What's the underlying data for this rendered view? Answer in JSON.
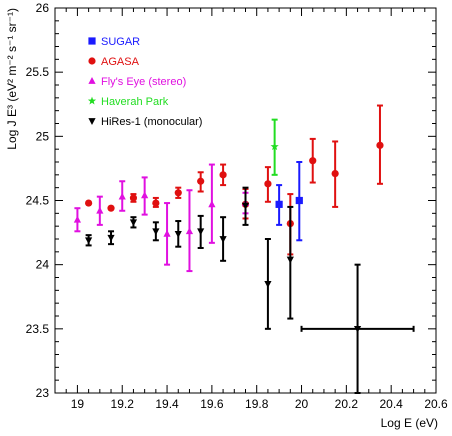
{
  "chart_data": {
    "type": "scatter",
    "title": "",
    "xlabel": "Log E  (eV)",
    "ylabel": "Log J E³ (eV² m⁻² s⁻¹ sr⁻¹)",
    "xlim": [
      18.9,
      20.6
    ],
    "ylim": [
      23,
      26
    ],
    "x_ticks": [
      "19",
      "19.2",
      "19.4",
      "19.6",
      "19.8",
      "20",
      "20.2",
      "20.4",
      "20.6"
    ],
    "y_ticks": [
      "23",
      "23.5",
      "24",
      "24.5",
      "25",
      "25.5",
      "26"
    ],
    "legend_position": "top-left",
    "series": [
      {
        "name": "SUGAR",
        "color": "#1a1aff",
        "marker": "square",
        "points": [
          {
            "x": 19.9,
            "y": 24.47,
            "ylo": 24.31,
            "yhi": 24.62
          },
          {
            "x": 19.99,
            "y": 24.5,
            "ylo": 24.19,
            "yhi": 24.8
          }
        ]
      },
      {
        "name": "AGASA",
        "color": "#e01010",
        "marker": "circle",
        "points": [
          {
            "x": 19.05,
            "y": 24.48
          },
          {
            "x": 19.15,
            "y": 24.44
          },
          {
            "x": 19.25,
            "y": 24.52,
            "ylo": 24.49,
            "yhi": 24.55
          },
          {
            "x": 19.35,
            "y": 24.48,
            "ylo": 24.45,
            "yhi": 24.52
          },
          {
            "x": 19.45,
            "y": 24.56,
            "ylo": 24.52,
            "yhi": 24.6
          },
          {
            "x": 19.55,
            "y": 24.65,
            "ylo": 24.57,
            "yhi": 24.72
          },
          {
            "x": 19.65,
            "y": 24.7,
            "ylo": 24.62,
            "yhi": 24.78
          },
          {
            "x": 19.75,
            "y": 24.47,
            "ylo": 24.36,
            "yhi": 24.59
          },
          {
            "x": 19.85,
            "y": 24.63,
            "ylo": 24.49,
            "yhi": 24.76
          },
          {
            "x": 19.95,
            "y": 24.32,
            "ylo": 24.08,
            "yhi": 24.55
          },
          {
            "x": 20.05,
            "y": 24.81,
            "ylo": 24.64,
            "yhi": 24.98
          },
          {
            "x": 20.15,
            "y": 24.71,
            "ylo": 24.45,
            "yhi": 24.96
          },
          {
            "x": 20.35,
            "y": 24.93,
            "ylo": 24.63,
            "yhi": 25.24
          }
        ]
      },
      {
        "name": "Fly's Eye (stereo)",
        "color": "#e010e0",
        "marker": "triangle-up",
        "points": [
          {
            "x": 19.0,
            "y": 24.35,
            "ylo": 24.26,
            "yhi": 24.44
          },
          {
            "x": 19.1,
            "y": 24.42,
            "ylo": 24.31,
            "yhi": 24.53
          },
          {
            "x": 19.2,
            "y": 24.53,
            "ylo": 24.42,
            "yhi": 24.65
          },
          {
            "x": 19.3,
            "y": 24.54,
            "ylo": 24.39,
            "yhi": 24.68
          },
          {
            "x": 19.4,
            "y": 24.24,
            "ylo": 24.0,
            "yhi": 24.48
          },
          {
            "x": 19.5,
            "y": 24.26,
            "ylo": 23.95,
            "yhi": 24.58
          },
          {
            "x": 19.6,
            "y": 24.47,
            "ylo": 24.17,
            "yhi": 24.78
          },
          {
            "x": 19.75,
            "y": 24.48,
            "ylo": 24.4,
            "yhi": 24.56
          }
        ]
      },
      {
        "name": "Haverah Park",
        "color": "#22dd22",
        "marker": "star",
        "points": [
          {
            "x": 19.88,
            "y": 24.92,
            "ylo": 24.7,
            "yhi": 25.13
          }
        ]
      },
      {
        "name": "HiRes-1 (monocular)",
        "color": "#000000",
        "marker": "triangle-down",
        "points": [
          {
            "x": 19.05,
            "y": 24.19,
            "ylo": 24.15,
            "yhi": 24.23
          },
          {
            "x": 19.15,
            "y": 24.21,
            "ylo": 24.16,
            "yhi": 24.26
          },
          {
            "x": 19.25,
            "y": 24.33,
            "ylo": 24.29,
            "yhi": 24.37
          },
          {
            "x": 19.35,
            "y": 24.26,
            "ylo": 24.19,
            "yhi": 24.33
          },
          {
            "x": 19.45,
            "y": 24.24,
            "ylo": 24.14,
            "yhi": 24.34
          },
          {
            "x": 19.55,
            "y": 24.26,
            "ylo": 24.13,
            "yhi": 24.38
          },
          {
            "x": 19.65,
            "y": 24.2,
            "ylo": 24.03,
            "yhi": 24.37
          },
          {
            "x": 19.75,
            "y": 24.46,
            "ylo": 24.31,
            "yhi": 24.6
          },
          {
            "x": 19.85,
            "y": 23.85,
            "ylo": 23.5,
            "yhi": 24.2
          },
          {
            "x": 19.95,
            "y": 24.04,
            "ylo": 23.58,
            "yhi": 24.45
          },
          {
            "x": 20.25,
            "y": 23.5,
            "ylo": 23.0,
            "yhi": 24.0,
            "xlo": 20.0,
            "xhi": 20.5
          }
        ]
      }
    ]
  }
}
